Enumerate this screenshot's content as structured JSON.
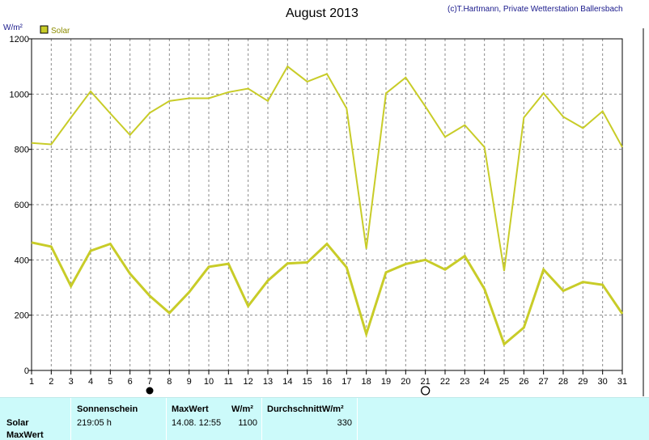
{
  "header": {
    "title": "August 2013",
    "copyright": "(c)T.Hartmann, Private Wetterstation Ballersbach",
    "unit": "W/m²"
  },
  "legend": {
    "label": "Solar",
    "color": "#c8cc28"
  },
  "chart_data": {
    "type": "line",
    "title": "August 2013",
    "ylabel": "W/m²",
    "ylim": [
      0,
      1200
    ],
    "xlim": [
      1,
      31
    ],
    "yticks": [
      0,
      200,
      400,
      600,
      800,
      1000,
      1200
    ],
    "x": [
      1,
      2,
      3,
      4,
      5,
      6,
      7,
      8,
      9,
      10,
      11,
      12,
      13,
      14,
      15,
      16,
      17,
      18,
      19,
      20,
      21,
      22,
      23,
      24,
      25,
      26,
      27,
      28,
      29,
      30,
      31
    ],
    "series": [
      {
        "name": "Solar",
        "color": "#c8cc28",
        "role": "max",
        "values": [
          823,
          818,
          915,
          1010,
          930,
          852,
          932,
          975,
          985,
          985,
          1007,
          1020,
          975,
          1100,
          1045,
          1073,
          948,
          440,
          1003,
          1060,
          955,
          845,
          888,
          808,
          360,
          915,
          1003,
          918,
          877,
          938,
          808
        ]
      },
      {
        "name": "Solar",
        "color": "#c8cc28",
        "role": "mean",
        "values": [
          463,
          448,
          305,
          433,
          458,
          350,
          270,
          208,
          283,
          375,
          386,
          233,
          325,
          387,
          391,
          458,
          373,
          132,
          355,
          385,
          400,
          365,
          414,
          295,
          95,
          155,
          365,
          288,
          320,
          310,
          205
        ]
      }
    ],
    "moon_phases": [
      {
        "day": 7,
        "phase": "new-moon"
      },
      {
        "day": 21,
        "phase": "full-moon"
      }
    ],
    "grid": true,
    "legend_position": "top-left"
  },
  "summary": {
    "headers": {
      "sunshine": "Sonnenschein",
      "maxwert": "MaxWert",
      "maxwert_unit": "W/m²",
      "average": "DurchschnittW/m²"
    },
    "rows": {
      "solar_label": "Solar",
      "maxwert_label": "MaxWert"
    },
    "values": {
      "sunshine": "219:05 h",
      "max_datetime": "14.08.  12:55",
      "max_value": "1100",
      "average": "330"
    }
  }
}
